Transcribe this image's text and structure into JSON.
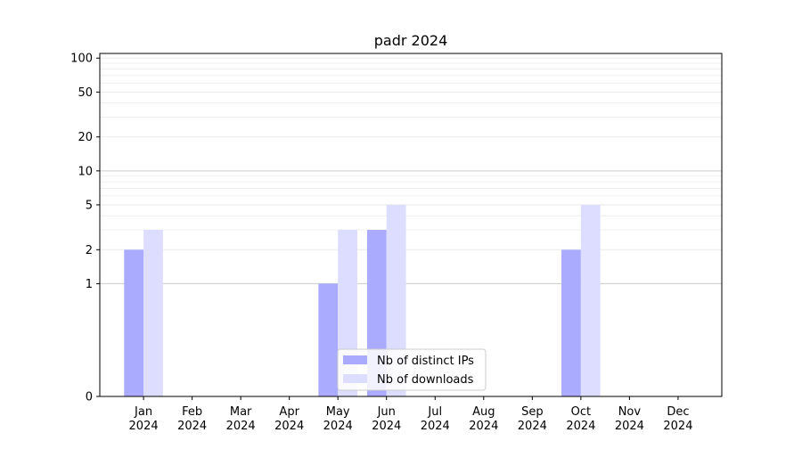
{
  "chart_data": {
    "type": "bar",
    "title": "padr 2024",
    "xlabel": "",
    "ylabel": "",
    "y_scale": "symlog",
    "ylim": [
      0,
      110
    ],
    "y_ticks": [
      0,
      1,
      2,
      5,
      10,
      20,
      50,
      100
    ],
    "grid": true,
    "legend_position": "lower-center",
    "categories": [
      [
        "Jan",
        "2024"
      ],
      [
        "Feb",
        "2024"
      ],
      [
        "Mar",
        "2024"
      ],
      [
        "Apr",
        "2024"
      ],
      [
        "May",
        "2024"
      ],
      [
        "Jun",
        "2024"
      ],
      [
        "Jul",
        "2024"
      ],
      [
        "Aug",
        "2024"
      ],
      [
        "Sep",
        "2024"
      ],
      [
        "Oct",
        "2024"
      ],
      [
        "Nov",
        "2024"
      ],
      [
        "Dec",
        "2024"
      ]
    ],
    "series": [
      {
        "name": "Nb of distinct IPs",
        "color": "#aaaaff",
        "values": [
          2,
          0,
          0,
          0,
          1,
          3,
          0,
          0,
          0,
          2,
          0,
          0
        ]
      },
      {
        "name": "Nb of downloads",
        "color": "#ddddff",
        "values": [
          3,
          0,
          0,
          0,
          3,
          5,
          0,
          0,
          0,
          5,
          0,
          0
        ]
      }
    ]
  }
}
